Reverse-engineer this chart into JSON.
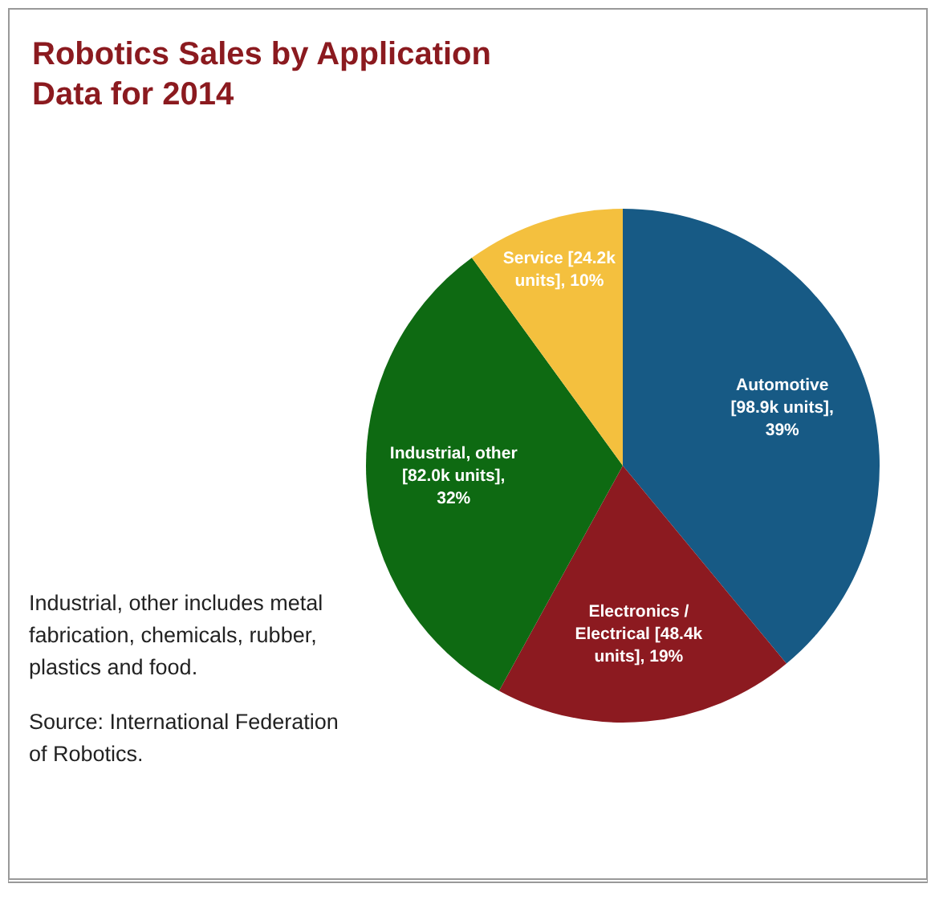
{
  "chart_data": {
    "type": "pie",
    "title": "Robotics Sales by Application",
    "subtitle": "Data for 2014",
    "categories": [
      "Automotive",
      "Electronics / Electrical",
      "Industrial, other",
      "Service"
    ],
    "values": [
      39,
      19,
      32,
      10
    ],
    "value_labels": [
      "[98.9k units], 39%",
      "[48.4k units], 19%",
      "[82.0k units], 32%",
      "[24.2k units], 10%"
    ],
    "colors": [
      "#175a85",
      "#8c1a20",
      "#0e6a12",
      "#f4c03e"
    ],
    "legend": false,
    "annotations": [
      "Industrial, other includes metal fabrication, chemicals, rubber, plastics and food.",
      "Source: International Federation of Robotics."
    ]
  }
}
